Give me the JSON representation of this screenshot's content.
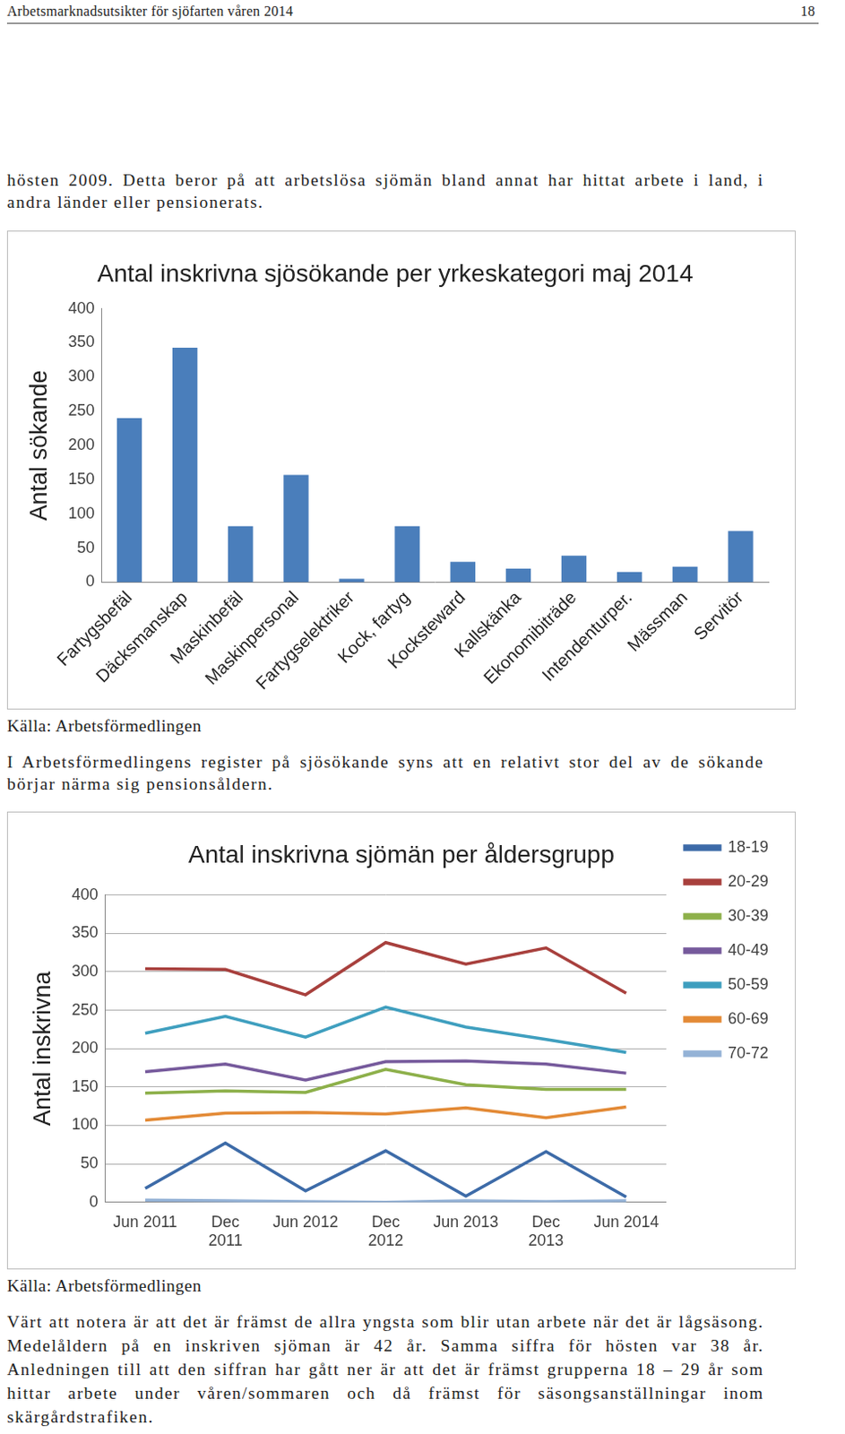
{
  "header": {
    "title": "Arbetsmarknadsutsikter för sjöfarten våren 2014",
    "page": 18
  },
  "text_1": "hösten 2009. Detta beror på att arbetslösa sjömän bland annat har hittat arbete i land, i andra länder eller pensionerats.",
  "chart_data": [
    {
      "type": "bar",
      "title": "Antal inskrivna sjösökande per yrkeskategori maj 2014",
      "ylabel": "Antal sökande",
      "categories": [
        "Fartygsbefäl",
        "Däcksmanskap",
        "Maskinbefäl",
        "Maskinpersonal",
        "Fartygselektriker",
        "Kock, fartyg",
        "Kocksteward",
        "Kallskänka",
        "Ekonomibiträde",
        "Intendenturper.",
        "Mässman",
        "Servitör"
      ],
      "values": [
        240,
        343,
        82,
        157,
        5,
        82,
        30,
        20,
        39,
        15,
        23,
        75
      ],
      "color": "#4a7ebb",
      "ylim": [
        0,
        400
      ],
      "yticks": [
        0,
        50,
        100,
        150,
        200,
        250,
        300,
        350,
        400
      ],
      "grid": false,
      "source": "Källa: Arbetsförmedlingen"
    },
    {
      "type": "line",
      "title": "Antal inskrivna sjömän per åldersgrupp",
      "ylabel": "Antal inskrivna",
      "categories": [
        "Jun 2011",
        "Dec 2011",
        "Jun 2012",
        "Dec 2012",
        "Jun 2013",
        "Dec 2013",
        "Jun 2014"
      ],
      "series": [
        {
          "name": "18-19",
          "color": "#3d6ba8",
          "values": [
            18,
            77,
            15,
            67,
            8,
            66,
            7
          ]
        },
        {
          "name": "20-29",
          "color": "#a8403d",
          "values": [
            304,
            303,
            270,
            338,
            310,
            331,
            272
          ]
        },
        {
          "name": "30-39",
          "color": "#8db04a",
          "values": [
            142,
            145,
            143,
            173,
            153,
            147,
            147
          ]
        },
        {
          "name": "40-49",
          "color": "#765a9c",
          "values": [
            170,
            180,
            159,
            183,
            184,
            180,
            168
          ]
        },
        {
          "name": "50-59",
          "color": "#3f9fbf",
          "values": [
            220,
            242,
            215,
            254,
            228,
            212,
            195
          ]
        },
        {
          "name": "60-69",
          "color": "#e38a36",
          "values": [
            107,
            116,
            117,
            115,
            123,
            110,
            124
          ]
        },
        {
          "name": "70-72",
          "color": "#94b2d6",
          "values": [
            3,
            2,
            1,
            0,
            2,
            1,
            2
          ]
        }
      ],
      "ylim": [
        0,
        400
      ],
      "yticks": [
        0,
        50,
        100,
        150,
        200,
        250,
        300,
        350,
        400
      ],
      "grid": true,
      "legend": "right",
      "source": "Källa: Arbetsförmedlingen"
    }
  ],
  "text_2": "I Arbetsförmedlingens register på sjösökande syns att en relativt stor del av de sökande börjar närma sig pensionsåldern.",
  "text_3": "Värt att notera är att det är främst de allra yngsta som blir utan arbete när det är lågsäsong. Medelåldern på en inskriven sjöman är 42 år. Samma siffra för hösten var 38 år. Anledningen till att den siffran har gått ner är att det är främst grupperna 18 – 29 år som hittar arbete under våren/sommaren och då främst för säsongsanställningar inom skärgårdstrafiken."
}
